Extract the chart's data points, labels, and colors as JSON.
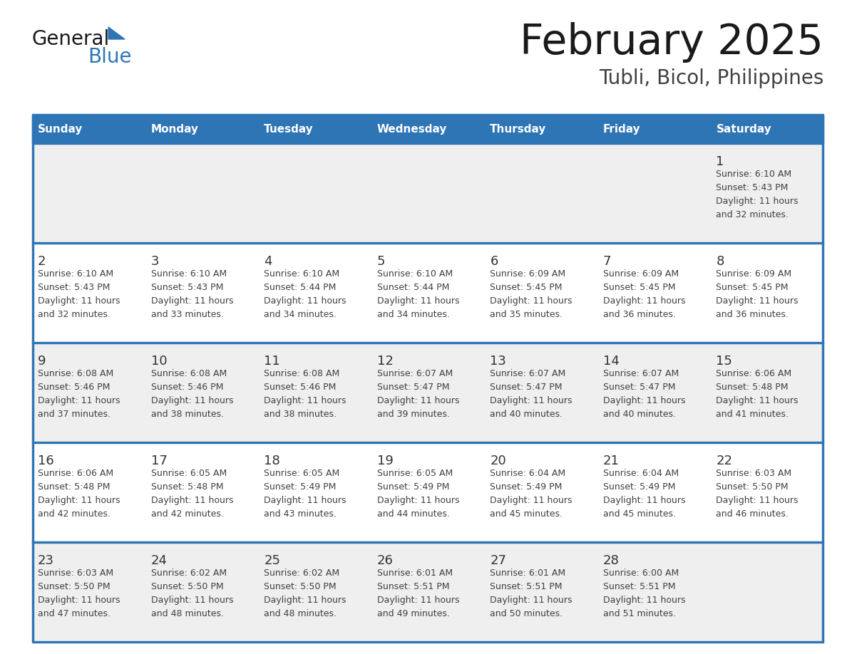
{
  "title": "February 2025",
  "subtitle": "Tubli, Bicol, Philippines",
  "days_of_week": [
    "Sunday",
    "Monday",
    "Tuesday",
    "Wednesday",
    "Thursday",
    "Friday",
    "Saturday"
  ],
  "header_bg_color": "#2E75B6",
  "header_text_color": "#FFFFFF",
  "cell_bg_color": "#EFEFEF",
  "row2_bg_color": "#FFFFFF",
  "grid_line_color": "#2E75B6",
  "day_number_color": "#333333",
  "cell_text_color": "#404040",
  "title_color": "#1a1a1a",
  "subtitle_color": "#404040",
  "logo_general_color": "#1a1a1a",
  "logo_blue_color": "#2E75B6",
  "calendar_data": [
    [
      {
        "day": null,
        "sunrise": null,
        "sunset": null,
        "daylight": null
      },
      {
        "day": null,
        "sunrise": null,
        "sunset": null,
        "daylight": null
      },
      {
        "day": null,
        "sunrise": null,
        "sunset": null,
        "daylight": null
      },
      {
        "day": null,
        "sunrise": null,
        "sunset": null,
        "daylight": null
      },
      {
        "day": null,
        "sunrise": null,
        "sunset": null,
        "daylight": null
      },
      {
        "day": null,
        "sunrise": null,
        "sunset": null,
        "daylight": null
      },
      {
        "day": 1,
        "sunrise": "6:10 AM",
        "sunset": "5:43 PM",
        "daylight": "11 hours\nand 32 minutes."
      }
    ],
    [
      {
        "day": 2,
        "sunrise": "6:10 AM",
        "sunset": "5:43 PM",
        "daylight": "11 hours\nand 32 minutes."
      },
      {
        "day": 3,
        "sunrise": "6:10 AM",
        "sunset": "5:43 PM",
        "daylight": "11 hours\nand 33 minutes."
      },
      {
        "day": 4,
        "sunrise": "6:10 AM",
        "sunset": "5:44 PM",
        "daylight": "11 hours\nand 34 minutes."
      },
      {
        "day": 5,
        "sunrise": "6:10 AM",
        "sunset": "5:44 PM",
        "daylight": "11 hours\nand 34 minutes."
      },
      {
        "day": 6,
        "sunrise": "6:09 AM",
        "sunset": "5:45 PM",
        "daylight": "11 hours\nand 35 minutes."
      },
      {
        "day": 7,
        "sunrise": "6:09 AM",
        "sunset": "5:45 PM",
        "daylight": "11 hours\nand 36 minutes."
      },
      {
        "day": 8,
        "sunrise": "6:09 AM",
        "sunset": "5:45 PM",
        "daylight": "11 hours\nand 36 minutes."
      }
    ],
    [
      {
        "day": 9,
        "sunrise": "6:08 AM",
        "sunset": "5:46 PM",
        "daylight": "11 hours\nand 37 minutes."
      },
      {
        "day": 10,
        "sunrise": "6:08 AM",
        "sunset": "5:46 PM",
        "daylight": "11 hours\nand 38 minutes."
      },
      {
        "day": 11,
        "sunrise": "6:08 AM",
        "sunset": "5:46 PM",
        "daylight": "11 hours\nand 38 minutes."
      },
      {
        "day": 12,
        "sunrise": "6:07 AM",
        "sunset": "5:47 PM",
        "daylight": "11 hours\nand 39 minutes."
      },
      {
        "day": 13,
        "sunrise": "6:07 AM",
        "sunset": "5:47 PM",
        "daylight": "11 hours\nand 40 minutes."
      },
      {
        "day": 14,
        "sunrise": "6:07 AM",
        "sunset": "5:47 PM",
        "daylight": "11 hours\nand 40 minutes."
      },
      {
        "day": 15,
        "sunrise": "6:06 AM",
        "sunset": "5:48 PM",
        "daylight": "11 hours\nand 41 minutes."
      }
    ],
    [
      {
        "day": 16,
        "sunrise": "6:06 AM",
        "sunset": "5:48 PM",
        "daylight": "11 hours\nand 42 minutes."
      },
      {
        "day": 17,
        "sunrise": "6:05 AM",
        "sunset": "5:48 PM",
        "daylight": "11 hours\nand 42 minutes."
      },
      {
        "day": 18,
        "sunrise": "6:05 AM",
        "sunset": "5:49 PM",
        "daylight": "11 hours\nand 43 minutes."
      },
      {
        "day": 19,
        "sunrise": "6:05 AM",
        "sunset": "5:49 PM",
        "daylight": "11 hours\nand 44 minutes."
      },
      {
        "day": 20,
        "sunrise": "6:04 AM",
        "sunset": "5:49 PM",
        "daylight": "11 hours\nand 45 minutes."
      },
      {
        "day": 21,
        "sunrise": "6:04 AM",
        "sunset": "5:49 PM",
        "daylight": "11 hours\nand 45 minutes."
      },
      {
        "day": 22,
        "sunrise": "6:03 AM",
        "sunset": "5:50 PM",
        "daylight": "11 hours\nand 46 minutes."
      }
    ],
    [
      {
        "day": 23,
        "sunrise": "6:03 AM",
        "sunset": "5:50 PM",
        "daylight": "11 hours\nand 47 minutes."
      },
      {
        "day": 24,
        "sunrise": "6:02 AM",
        "sunset": "5:50 PM",
        "daylight": "11 hours\nand 48 minutes."
      },
      {
        "day": 25,
        "sunrise": "6:02 AM",
        "sunset": "5:50 PM",
        "daylight": "11 hours\nand 48 minutes."
      },
      {
        "day": 26,
        "sunrise": "6:01 AM",
        "sunset": "5:51 PM",
        "daylight": "11 hours\nand 49 minutes."
      },
      {
        "day": 27,
        "sunrise": "6:01 AM",
        "sunset": "5:51 PM",
        "daylight": "11 hours\nand 50 minutes."
      },
      {
        "day": 28,
        "sunrise": "6:00 AM",
        "sunset": "5:51 PM",
        "daylight": "11 hours\nand 51 minutes."
      },
      {
        "day": null,
        "sunrise": null,
        "sunset": null,
        "daylight": null
      }
    ]
  ]
}
